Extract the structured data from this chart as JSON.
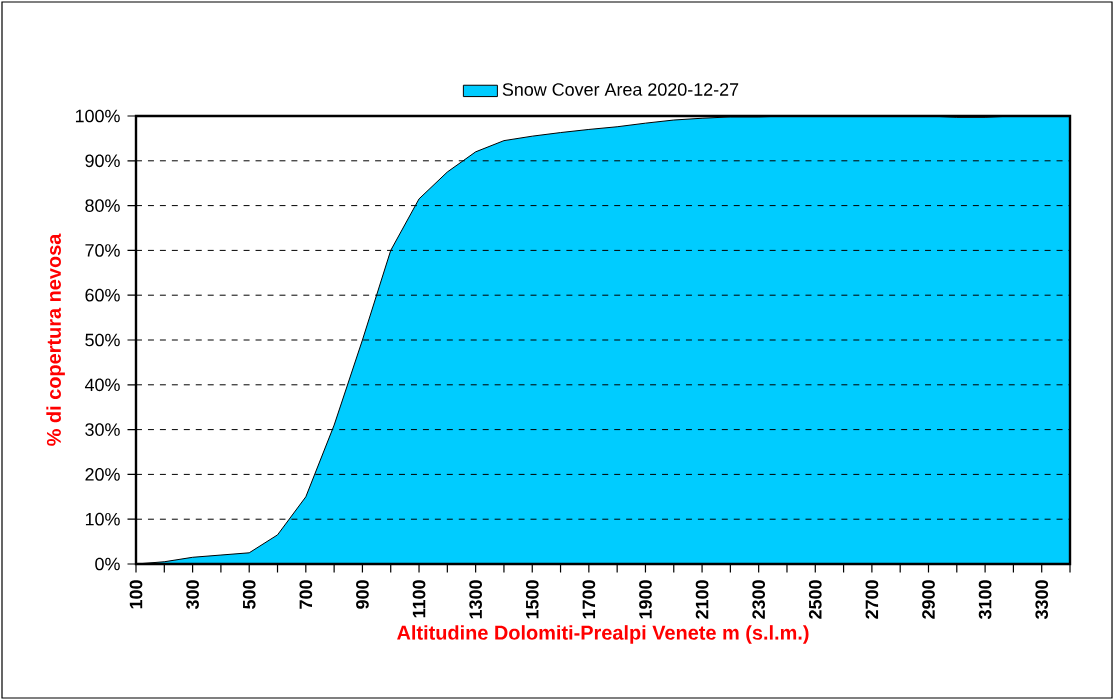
{
  "chart_data": {
    "type": "area",
    "xlabel": "Altitudine Dolomiti-Prealpi Venete m (s.l.m.)",
    "ylabel": "% di copertura nevosa",
    "x": [
      100,
      200,
      300,
      400,
      500,
      600,
      700,
      800,
      900,
      1000,
      1100,
      1200,
      1300,
      1400,
      1500,
      1600,
      1700,
      1800,
      1900,
      2000,
      2100,
      2200,
      2300,
      2400,
      2500,
      2600,
      2700,
      2800,
      2900,
      3000,
      3100,
      3200,
      3300,
      3400
    ],
    "series": [
      {
        "name": "Snow Cover Area 2020-12-27",
        "color": "#00ccff",
        "values": [
          0,
          0.5,
          1.5,
          2,
          2.5,
          6.5,
          15,
          31,
          50,
          70,
          81.5,
          87.5,
          92,
          94.5,
          95.5,
          96.3,
          97,
          97.6,
          98.4,
          99.1,
          99.5,
          99.8,
          99.8,
          100,
          100,
          100,
          100,
          100,
          100,
          99.7,
          99.7,
          100,
          100,
          100
        ]
      }
    ],
    "xlim": [
      100,
      3400
    ],
    "xticks": [
      100,
      {
        "value": 200,
        "label": null
      },
      300,
      {
        "value": 400,
        "label": null
      },
      500,
      {
        "value": 600,
        "label": null
      },
      700,
      {
        "value": 800,
        "label": null
      },
      900,
      {
        "value": 1000,
        "label": null
      },
      1100,
      {
        "value": 1200,
        "label": null
      },
      1300,
      {
        "value": 1400,
        "label": null
      },
      1500,
      {
        "value": 1600,
        "label": null
      },
      1700,
      {
        "value": 1800,
        "label": null
      },
      1900,
      {
        "value": 2000,
        "label": null
      },
      2100,
      {
        "value": 2200,
        "label": null
      },
      2300,
      {
        "value": 2400,
        "label": null
      },
      2500,
      {
        "value": 2600,
        "label": null
      },
      2700,
      {
        "value": 2800,
        "label": null
      },
      2900,
      {
        "value": 3000,
        "label": null
      },
      3100,
      {
        "value": 3200,
        "label": null
      },
      3300,
      {
        "value": 3400,
        "label": null
      }
    ],
    "ylim": [
      0,
      100
    ],
    "yticks": [
      {
        "value": 0,
        "label": "0%"
      },
      {
        "value": 10,
        "label": "10%"
      },
      {
        "value": 20,
        "label": "20%"
      },
      {
        "value": 30,
        "label": "30%"
      },
      {
        "value": 40,
        "label": "40%"
      },
      {
        "value": 50,
        "label": "50%"
      },
      {
        "value": 60,
        "label": "60%"
      },
      {
        "value": 70,
        "label": "70%"
      },
      {
        "value": 80,
        "label": "80%"
      },
      {
        "value": 90,
        "label": "90%"
      },
      {
        "value": 100,
        "label": "100%"
      }
    ],
    "grid": "y",
    "legend": "top"
  }
}
